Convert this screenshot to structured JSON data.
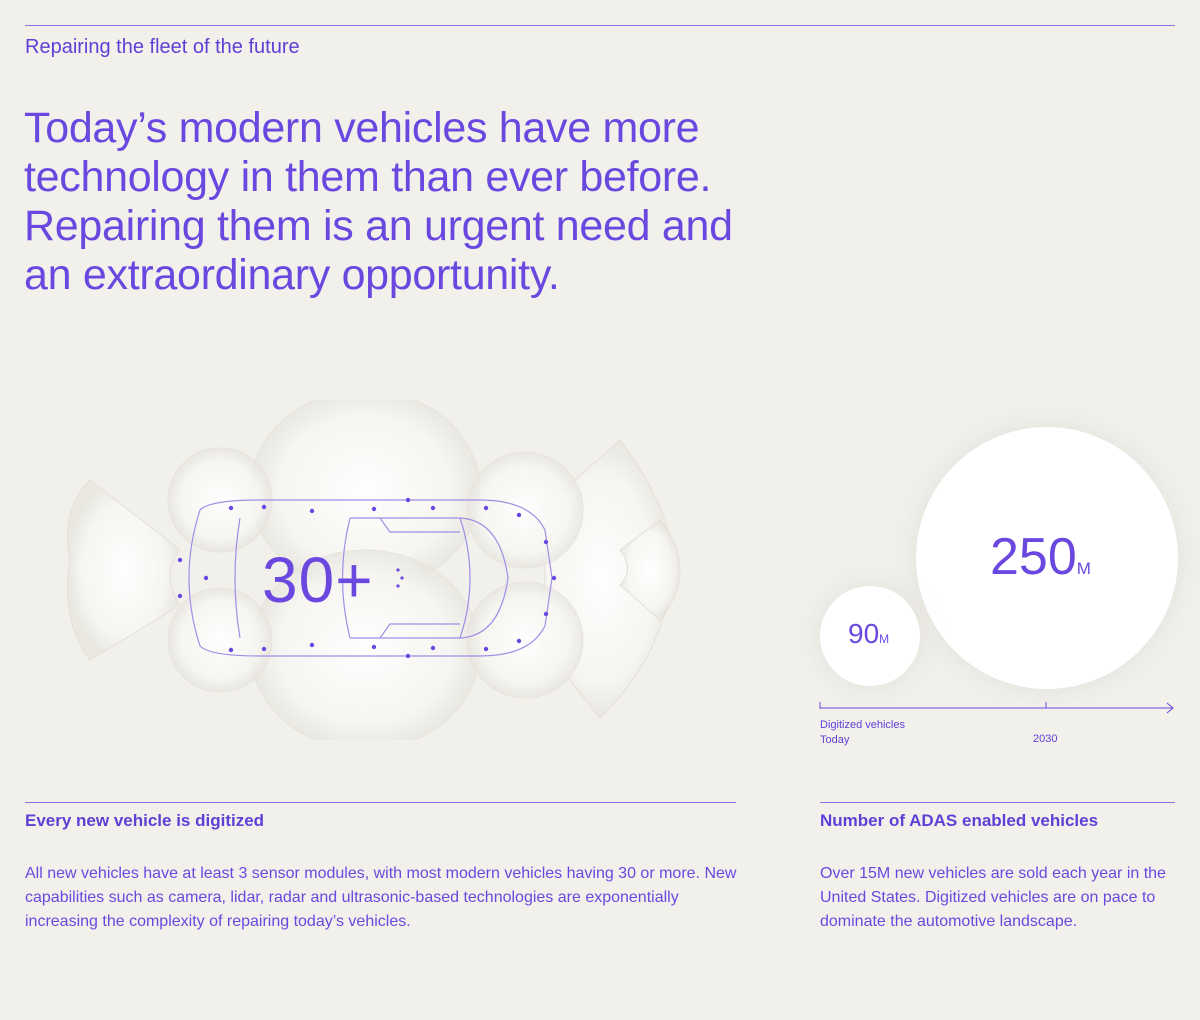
{
  "header": {
    "eyebrow": "Repairing the fleet of the future",
    "headline_lines": [
      "Today’s modern vehicles have more",
      "technology in them than ever before.",
      "Repairing them is an urgent need and",
      "an extraordinary opportunity."
    ]
  },
  "vehicle_graphic": {
    "stat": "30+"
  },
  "adas_chart": {
    "today": {
      "value": "90",
      "unit": "M"
    },
    "future": {
      "value": "250",
      "unit": "M"
    },
    "axis": {
      "series_label": "Digitized vehicles",
      "start_label": "Today",
      "end_label": "2030"
    }
  },
  "sections": {
    "left": {
      "title": "Every new vehicle is digitized",
      "body": "All new vehicles have at least 3 sensor modules, with most modern vehicles having 30 or more. New capabilities such as camera, lidar, radar and ultrasonic-based technologies are exponentially increasing the complexity of repairing today’s vehicles."
    },
    "right": {
      "title": "Number of ADAS enabled vehicles",
      "body": "Over 15M new vehicles are sold each year in the United States. Digitized vehicles are on pace to dominate the automotive landscape."
    }
  },
  "colors": {
    "background": "#f1f0eb",
    "accent": "#6a48e0",
    "bubble": "#ffffff"
  }
}
